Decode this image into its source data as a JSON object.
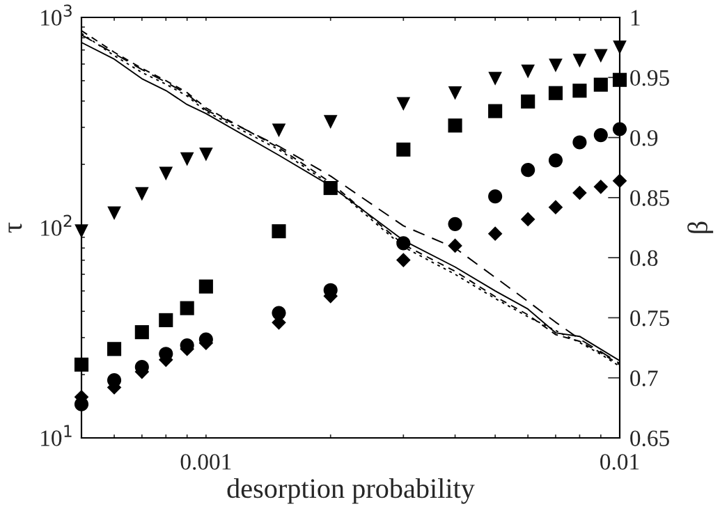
{
  "chart_data": {
    "type": "line",
    "xlabel": "desorption probability",
    "ylabel": "τ",
    "y2label": "β",
    "x": [
      0.0005,
      0.0006,
      0.0007,
      0.0008,
      0.0009,
      0.001,
      0.0015,
      0.002,
      0.003,
      0.004,
      0.005,
      0.006,
      0.007,
      0.008,
      0.009,
      0.01
    ],
    "log": "xy",
    "xlim": [
      0.0005,
      0.01
    ],
    "xticks": [
      {
        "value": 0.0006,
        "label": null
      },
      {
        "value": 0.0007,
        "label": null
      },
      {
        "value": 0.0008,
        "label": null
      },
      {
        "value": 0.0009,
        "label": null
      },
      0.001,
      {
        "value": 0.002,
        "label": null
      },
      {
        "value": 0.003,
        "label": null
      },
      {
        "value": 0.004,
        "label": null
      },
      {
        "value": 0.005,
        "label": null
      },
      {
        "value": 0.006,
        "label": null
      },
      {
        "value": 0.007,
        "label": null
      },
      {
        "value": 0.008,
        "label": null
      },
      {
        "value": 0.009,
        "label": null
      },
      0.01
    ],
    "ylim": [
      10,
      1000
    ],
    "yticks": [
      {
        "value": 10,
        "label": "10$^{1}$"
      },
      {
        "value": 20,
        "label": null
      },
      {
        "value": 30,
        "label": null
      },
      {
        "value": 40,
        "label": null
      },
      {
        "value": 50,
        "label": null
      },
      {
        "value": 60,
        "label": null
      },
      {
        "value": 70,
        "label": null
      },
      {
        "value": 80,
        "label": null
      },
      {
        "value": 90,
        "label": null
      },
      {
        "value": 100,
        "label": "10$^{2}$"
      },
      {
        "value": 200,
        "label": null
      },
      {
        "value": 300,
        "label": null
      },
      {
        "value": 400,
        "label": null
      },
      {
        "value": 500,
        "label": null
      },
      {
        "value": 600,
        "label": null
      },
      {
        "value": 700,
        "label": null
      },
      {
        "value": 800,
        "label": null
      },
      {
        "value": 900,
        "label": null
      },
      {
        "value": 1000,
        "label": "10$^{3}$"
      }
    ],
    "y2lim": [
      0.65,
      1
    ],
    "y2ticks": [
      0.65,
      0.7,
      0.75,
      0.8,
      0.85,
      0.9,
      0.95,
      1
    ],
    "grid": false,
    "series": [
      {
        "color": "#000000",
        "line_style": "solid",
        "marker": "none",
        "values": [
          760,
          633,
          511,
          449,
          385,
          349,
          221,
          158,
          87,
          65,
          50,
          41,
          31.6,
          30.4,
          26.4,
          23.3
        ]
      },
      {
        "color": "#000000",
        "line_style": "dashed",
        "marker": "none",
        "values": [
          826,
          673,
          565,
          492,
          432,
          363,
          244,
          176,
          102,
          80,
          58,
          44.6,
          35.5,
          29.5,
          25.7,
          22.6
        ]
      },
      {
        "color": "#000000",
        "line_style": "dashed",
        "marker": "none",
        "values": [
          865,
          683,
          572,
          500,
          439,
          371,
          240,
          164,
          83,
          62,
          47,
          38.5,
          31,
          28.8,
          25.4,
          22.3
        ]
      },
      {
        "color": "#000000",
        "line_style": "dotted",
        "marker": "none",
        "values": [
          840,
          658,
          547,
          481,
          423,
          357,
          235,
          160,
          81,
          60,
          46,
          37.7,
          32.4,
          28.4,
          25,
          21.9
        ]
      },
      {
        "type": "scatter",
        "axis": "y2",
        "color": "#000000",
        "marker": "triangle",
        "values": [
          0.822,
          0.837,
          0.853,
          0.87,
          0.882,
          0.886,
          0.906,
          0.913,
          0.928,
          0.937,
          0.949,
          0.955,
          0.96,
          0.964,
          0.968,
          0.975
        ]
      },
      {
        "type": "scatter",
        "axis": "y2",
        "color": "#000000",
        "marker": "square",
        "values": [
          0.711,
          0.724,
          0.738,
          0.748,
          0.758,
          0.776,
          0.822,
          0.858,
          0.89,
          0.91,
          0.922,
          0.93,
          0.937,
          0.939,
          0.944,
          0.948
        ]
      },
      {
        "type": "scatter",
        "axis": "y2",
        "color": "#000000",
        "marker": "circle",
        "values": [
          0.678,
          0.698,
          0.709,
          0.72,
          0.727,
          0.732,
          0.754,
          0.773,
          0.812,
          0.828,
          0.851,
          0.873,
          0.881,
          0.896,
          0.902,
          0.907
        ]
      },
      {
        "type": "scatter",
        "axis": "y2",
        "color": "#000000",
        "marker": "diamond",
        "values": [
          0.684,
          0.692,
          0.705,
          0.715,
          0.724,
          0.729,
          0.746,
          0.768,
          0.798,
          0.81,
          0.82,
          0.832,
          0.842,
          0.854,
          0.859,
          0.864
        ]
      }
    ]
  }
}
